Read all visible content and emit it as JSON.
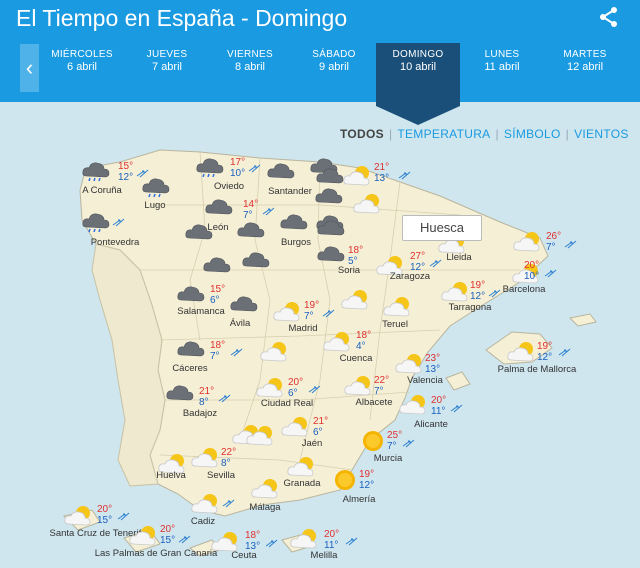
{
  "title": "El Tiempo en España - Domingo",
  "nav": {
    "prev_icon": "chevron-left-icon",
    "days": [
      {
        "name": "MIÉRCOLES",
        "date": "6 abril"
      },
      {
        "name": "JUEVES",
        "date": "7 abril"
      },
      {
        "name": "VIERNES",
        "date": "8 abril"
      },
      {
        "name": "SÁBADO",
        "date": "9 abril"
      },
      {
        "name": "DOMINGO",
        "date": "10 abril",
        "selected": true
      },
      {
        "name": "LUNES",
        "date": "11 abril"
      },
      {
        "name": "MARTES",
        "date": "12 abril"
      }
    ]
  },
  "filters": {
    "all": "TODOS",
    "temp": "TEMPERATURA",
    "symbol": "SÍMBOLO",
    "wind": "VIENTOS"
  },
  "tooltip": "Huesca",
  "colors": {
    "header": "#1a9ae0",
    "selected_day": "#1a4f7a",
    "sea": "#cfe6ee",
    "land": "#f5efd6",
    "tmax": "#e03030",
    "tmin": "#1a60c0"
  },
  "cities": [
    {
      "name": "A Coruña",
      "max": "15°",
      "min": "12°",
      "sky": "rain"
    },
    {
      "name": "Lugo",
      "max": "",
      "min": "",
      "sky": "rain"
    },
    {
      "name": "Pontevedra",
      "max": "",
      "min": "",
      "sky": "rain"
    },
    {
      "name": "Oviedo",
      "max": "17°",
      "min": "10°",
      "sky": "rain"
    },
    {
      "name": "Santander",
      "max": "",
      "min": "",
      "sky": "cloud"
    },
    {
      "name": "León",
      "max": "14°",
      "min": "7°",
      "sky": "cloud"
    },
    {
      "name": "Burgos",
      "max": "",
      "min": "",
      "sky": "cloud"
    },
    {
      "name": "Soria",
      "max": "18°",
      "min": "5°",
      "sky": "cloud"
    },
    {
      "name": "Lleida",
      "max": "",
      "min": "",
      "sky": "sunny-cloud"
    },
    {
      "name": "Barcelona",
      "max": "20°",
      "min": "10°",
      "sky": "sunny-cloud"
    },
    {
      "name": "Zaragoza",
      "max": "27°",
      "min": "12°",
      "sky": "sunny-cloud"
    },
    {
      "name": "Tarragona",
      "max": "19°",
      "min": "12°",
      "sky": "sunny-cloud"
    },
    {
      "name": "Salamanca",
      "max": "15°",
      "min": "6°",
      "sky": "cloud"
    },
    {
      "name": "Ávila",
      "max": "",
      "min": "",
      "sky": "cloud"
    },
    {
      "name": "Madrid",
      "max": "19°",
      "min": "7°",
      "sky": "sunny-cloud"
    },
    {
      "name": "Teruel",
      "max": "",
      "min": "",
      "sky": "sunny-cloud"
    },
    {
      "name": "Cuenca",
      "max": "18°",
      "min": "4°",
      "sky": "sunny-cloud"
    },
    {
      "name": "Cáceres",
      "max": "18°",
      "min": "7°",
      "sky": "cloud"
    },
    {
      "name": "Valencia",
      "max": "23°",
      "min": "13°",
      "sky": "sunny-cloud"
    },
    {
      "name": "Palma de Mallorca",
      "max": "19°",
      "min": "12°",
      "sky": "sunny-cloud"
    },
    {
      "name": "Badajoz",
      "max": "21°",
      "min": "8°",
      "sky": "cloud"
    },
    {
      "name": "Ciudad Real",
      "max": "20°",
      "min": "6°",
      "sky": "sunny-cloud"
    },
    {
      "name": "Albacete",
      "max": "22°",
      "min": "7°",
      "sky": "sunny-cloud"
    },
    {
      "name": "Alicante",
      "max": "20°",
      "min": "11°",
      "sky": "sunny-cloud"
    },
    {
      "name": "Jaén",
      "max": "21°",
      "min": "6°",
      "sky": "sunny-cloud"
    },
    {
      "name": "Murcia",
      "max": "25°",
      "min": "7°",
      "sky": "sun"
    },
    {
      "name": "Huelva",
      "max": "",
      "min": "",
      "sky": "sunny-cloud"
    },
    {
      "name": "Sevilla",
      "max": "22°",
      "min": "8°",
      "sky": "sunny-cloud"
    },
    {
      "name": "Granada",
      "max": "",
      "min": "",
      "sky": "sunny-cloud"
    },
    {
      "name": "Almería",
      "max": "19°",
      "min": "12°",
      "sky": "sun"
    },
    {
      "name": "Cadiz",
      "max": "",
      "min": "",
      "sky": "sunny-cloud"
    },
    {
      "name": "Málaga",
      "max": "",
      "min": "",
      "sky": "sunny-cloud"
    },
    {
      "name": "Santa Cruz de Tenerife",
      "max": "20°",
      "min": "15°",
      "sky": "sunny-cloud"
    },
    {
      "name": "Las Palmas de Gran Canaria",
      "max": "20°",
      "min": "15°",
      "sky": "sunny-cloud"
    },
    {
      "name": "Ceuta",
      "max": "18°",
      "min": "13°",
      "sky": "sunny-cloud"
    },
    {
      "name": "Melilla",
      "max": "20°",
      "min": "11°",
      "sky": "sunny-cloud"
    },
    {
      "name": "",
      "max": "21°",
      "min": "13°",
      "sky": "sunny-cloud"
    },
    {
      "name": "",
      "max": "26°",
      "min": "7°",
      "sky": "sunny-cloud"
    }
  ],
  "extra_icons": [
    {
      "sky": "cloud"
    },
    {
      "sky": "cloud"
    },
    {
      "sky": "cloud"
    },
    {
      "sky": "cloud"
    },
    {
      "sky": "cloud"
    },
    {
      "sky": "cloud"
    },
    {
      "sky": "cloud"
    },
    {
      "sky": "cloud"
    },
    {
      "sky": "sunny-cloud"
    },
    {
      "sky": "sunny-cloud"
    },
    {
      "sky": "sunny-cloud"
    },
    {
      "sky": "sunny-cloud"
    },
    {
      "sky": "sunny-cloud"
    },
    {
      "sky": "cloud"
    }
  ]
}
